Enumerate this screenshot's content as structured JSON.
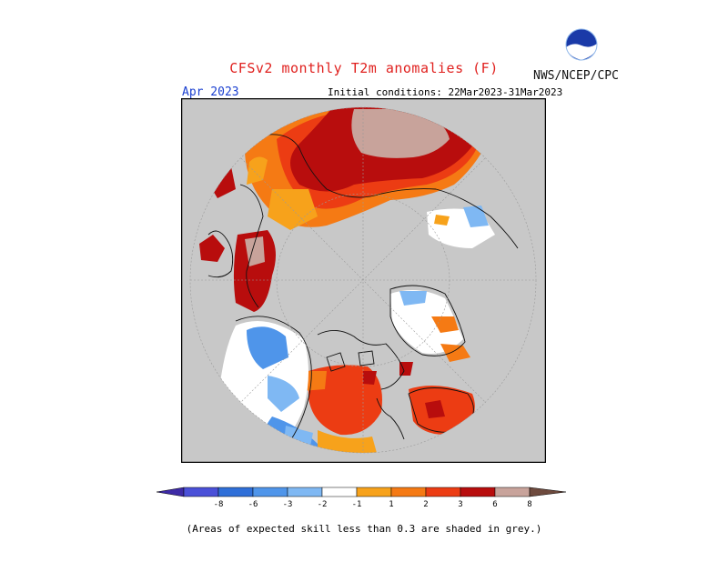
{
  "header": {
    "title": "CFSv2 monthly T2m anomalies (F)",
    "agency": "NWS/NCEP/CPC",
    "month": "Apr 2023",
    "initial_conditions": "Initial conditions: 22Mar2023-31Mar2023"
  },
  "logo": {
    "text": "NOAA",
    "icon": "noaa-logo-icon"
  },
  "map": {
    "projection": "north-polar-stereographic",
    "grey_meaning": "skill < 0.3"
  },
  "legend": {
    "colors": [
      "#3d2aa6",
      "#4a50d8",
      "#2f6fd8",
      "#4f95ea",
      "#7fb8f3",
      "#ffffff",
      "#f7a21b",
      "#f57a14",
      "#ec3c13",
      "#b80d0d",
      "#c8a39b",
      "#6e4a3e"
    ],
    "tick_labels": [
      "-8",
      "-6",
      "-3",
      "-2",
      "-1",
      "1",
      "2",
      "3",
      "6",
      "8"
    ]
  },
  "footnote": "(Areas of expected skill less than 0.3 are shaded in grey.)"
}
